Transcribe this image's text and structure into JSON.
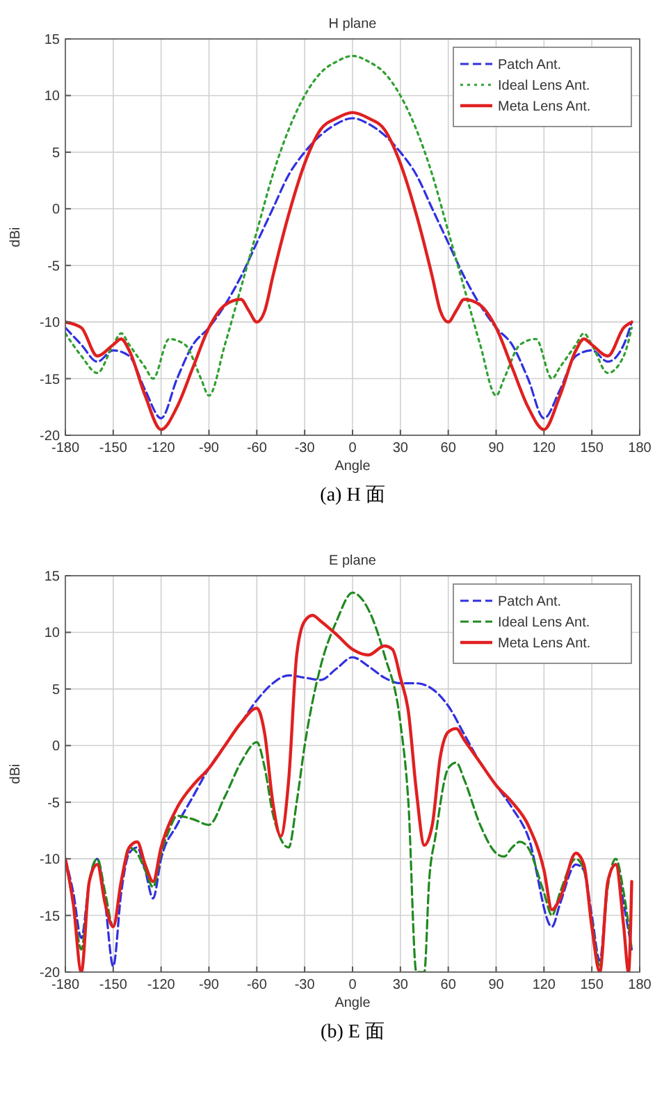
{
  "chart_data": [
    {
      "type": "line",
      "title": "H plane",
      "xlabel": "Angle",
      "ylabel": "dBi",
      "annotations": [
        "(a) H 面"
      ],
      "xlim": [
        -180,
        180
      ],
      "xticks": [
        -180,
        -150,
        -120,
        -90,
        -60,
        -30,
        0,
        30,
        60,
        90,
        120,
        150,
        180
      ],
      "ylim": [
        -20,
        15
      ],
      "yticks": [
        -20,
        -15,
        -10,
        -5,
        0,
        5,
        10,
        15
      ],
      "grid": true,
      "legend": "top right",
      "marker": "none",
      "series": [
        {
          "name": "Patch Ant.",
          "color": "#3030e0",
          "line_style": "dashed",
          "x": [
            -180,
            -170,
            -160,
            -150,
            -140,
            -130,
            -120,
            -110,
            -100,
            -90,
            -80,
            -70,
            -60,
            -50,
            -40,
            -30,
            -20,
            -10,
            0,
            10,
            20,
            30,
            40,
            50,
            60,
            70,
            80,
            90,
            100,
            110,
            120,
            130,
            140,
            150,
            160,
            170,
            175
          ],
          "values": [
            -10.5,
            -12,
            -13.5,
            -12.5,
            -13,
            -16,
            -18.5,
            -15,
            -12,
            -10.5,
            -8.5,
            -6,
            -3,
            0,
            3,
            5,
            6.5,
            7.5,
            8,
            7.5,
            6.5,
            5,
            3,
            0,
            -3,
            -6,
            -8.5,
            -10.5,
            -12,
            -15,
            -18.5,
            -16,
            -13,
            -12.5,
            -13.5,
            -12,
            -10
          ]
        },
        {
          "name": "Ideal Lens Ant.",
          "color": "#30a030",
          "line_style": "dotted",
          "x": [
            -180,
            -170,
            -160,
            -150,
            -145,
            -140,
            -130,
            -125,
            -115,
            -105,
            -95,
            -90,
            -80,
            -70,
            -60,
            -50,
            -40,
            -30,
            -20,
            -10,
            0,
            10,
            20,
            30,
            40,
            50,
            60,
            70,
            80,
            90,
            95,
            105,
            115,
            125,
            130,
            140,
            145,
            150,
            160,
            170,
            175
          ],
          "values": [
            -11,
            -13,
            -14.5,
            -12,
            -11,
            -12,
            -14,
            -15,
            -11.5,
            -12,
            -15,
            -16.5,
            -12,
            -7,
            -2,
            3,
            7,
            10,
            12,
            13,
            13.5,
            13,
            12,
            10,
            7,
            3,
            -2,
            -7,
            -12,
            -16.5,
            -15,
            -12,
            -11.5,
            -15,
            -14,
            -12,
            -11,
            -12,
            -14.5,
            -13,
            -10.5
          ]
        },
        {
          "name": "Meta Lens Ant.",
          "color": "#e02020",
          "line_style": "solid",
          "x": [
            -180,
            -170,
            -160,
            -150,
            -145,
            -140,
            -130,
            -120,
            -110,
            -100,
            -90,
            -80,
            -70,
            -65,
            -60,
            -55,
            -50,
            -40,
            -30,
            -20,
            -10,
            0,
            10,
            20,
            30,
            40,
            50,
            55,
            60,
            65,
            70,
            80,
            90,
            100,
            110,
            120,
            130,
            140,
            145,
            150,
            160,
            170,
            175
          ],
          "values": [
            -10,
            -10.5,
            -13,
            -12,
            -11.5,
            -12.5,
            -16.5,
            -19.5,
            -17.5,
            -14,
            -10.5,
            -8.5,
            -8,
            -9,
            -10,
            -9,
            -6,
            -0.5,
            4,
            7,
            8,
            8.5,
            8,
            7,
            4,
            -0.5,
            -6,
            -9,
            -10,
            -9,
            -8,
            -8.5,
            -10.5,
            -14,
            -17.5,
            -19.5,
            -16.5,
            -12.5,
            -11.5,
            -12,
            -13,
            -10.5,
            -10
          ]
        }
      ]
    },
    {
      "type": "line",
      "title": "E plane",
      "xlabel": "Angle",
      "ylabel": "dBi",
      "annotations": [
        "(b) E 面"
      ],
      "xlim": [
        -180,
        180
      ],
      "xticks": [
        -180,
        -150,
        -120,
        -90,
        -60,
        -30,
        0,
        30,
        60,
        90,
        120,
        150,
        180
      ],
      "ylim": [
        -20,
        15
      ],
      "yticks": [
        -20,
        -15,
        -10,
        -5,
        0,
        5,
        10,
        15
      ],
      "grid": true,
      "legend": "top right",
      "marker": "none",
      "series": [
        {
          "name": "Patch Ant.",
          "color": "#3030e0",
          "line_style": "dashed",
          "x": [
            -180,
            -175,
            -170,
            -165,
            -160,
            -155,
            -150,
            -145,
            -140,
            -135,
            -130,
            -125,
            -120,
            -110,
            -100,
            -90,
            -80,
            -70,
            -60,
            -50,
            -40,
            -30,
            -20,
            -10,
            0,
            10,
            20,
            30,
            40,
            50,
            60,
            70,
            80,
            90,
            100,
            110,
            120,
            125,
            130,
            140,
            145,
            150,
            155,
            160,
            165,
            170,
            175
          ],
          "values": [
            -10,
            -13,
            -17,
            -12,
            -10,
            -14,
            -19.5,
            -13,
            -9.5,
            -9,
            -11,
            -13.5,
            -10,
            -7,
            -4.5,
            -2,
            0,
            2,
            4,
            5.5,
            6.2,
            6,
            5.8,
            6.8,
            7.8,
            7,
            6,
            5.5,
            5.5,
            5,
            3.5,
            1,
            -1.5,
            -3.5,
            -5.5,
            -8,
            null,
            -16,
            -14,
            -10.5,
            -11,
            -15,
            -19,
            -12,
            -10.5,
            -14,
            -18
          ]
        },
        {
          "name": "Ideal Lens Ant.",
          "color": "#208a20",
          "line_style": "dashed",
          "x": [
            -180,
            -175,
            -170,
            -165,
            -160,
            -155,
            -150,
            -145,
            -140,
            -135,
            -130,
            -125,
            -120,
            -115,
            -110,
            -100,
            -90,
            -80,
            -70,
            -60,
            -55,
            -50,
            -40,
            -35,
            -30,
            -20,
            -10,
            0,
            10,
            20,
            30,
            35,
            40,
            45,
            48,
            52,
            60,
            65,
            70,
            80,
            90,
            95,
            100,
            105,
            110,
            120,
            125,
            130,
            140,
            145,
            150,
            155,
            160,
            165,
            170,
            175
          ],
          "values": [
            -10,
            -14,
            -18,
            -12,
            -10,
            -13,
            -16,
            -12,
            -9,
            -9.5,
            -11,
            -12.5,
            -9.5,
            -7.5,
            -6.2,
            -6.5,
            -7,
            -4.5,
            -1.5,
            0.3,
            -2,
            -6,
            -9,
            -5,
            0,
            7,
            11,
            13.5,
            12,
            8,
            2,
            -5,
            -20,
            -20,
            -12,
            -8,
            -2,
            -1.5,
            -3,
            -7,
            -9.5,
            -9.8,
            -9,
            -8.5,
            -9,
            -13,
            -15,
            -13,
            -10,
            -11,
            -15.5,
            -19.5,
            -12.5,
            -10,
            -13,
            -18
          ]
        },
        {
          "name": "Meta Lens Ant.",
          "color": "#e02020",
          "line_style": "solid",
          "x": [
            -180,
            -175,
            -170,
            -165,
            -160,
            -155,
            -150,
            -145,
            -140,
            -135,
            -130,
            -125,
            -120,
            -110,
            -100,
            -90,
            -80,
            -70,
            -60,
            -55,
            -50,
            -45,
            -40,
            -35,
            -30,
            -25,
            -20,
            -10,
            0,
            10,
            20,
            25,
            30,
            35,
            40,
            45,
            50,
            55,
            60,
            65,
            70,
            80,
            90,
            100,
            110,
            120,
            125,
            130,
            140,
            145,
            150,
            155,
            160,
            165,
            170,
            173,
            175
          ],
          "values": [
            -10,
            -14,
            -20,
            -12,
            -10.5,
            -14,
            -16,
            -12,
            -9,
            -8.5,
            -10.5,
            -12,
            -9,
            -5.5,
            -3.5,
            -2,
            0,
            2,
            3.3,
            1,
            -5,
            -8,
            -3,
            8,
            11,
            11.5,
            11,
            9.8,
            8.5,
            8,
            8.8,
            8.5,
            6,
            3,
            -4,
            -8.8,
            -7,
            -1,
            1.2,
            1.5,
            0.5,
            -1.5,
            -3.5,
            -5,
            -7,
            -11,
            -14.5,
            -13.5,
            -9.5,
            -10.5,
            -16,
            -20,
            -12,
            -10.5,
            -16,
            -20,
            -12
          ]
        }
      ]
    }
  ]
}
